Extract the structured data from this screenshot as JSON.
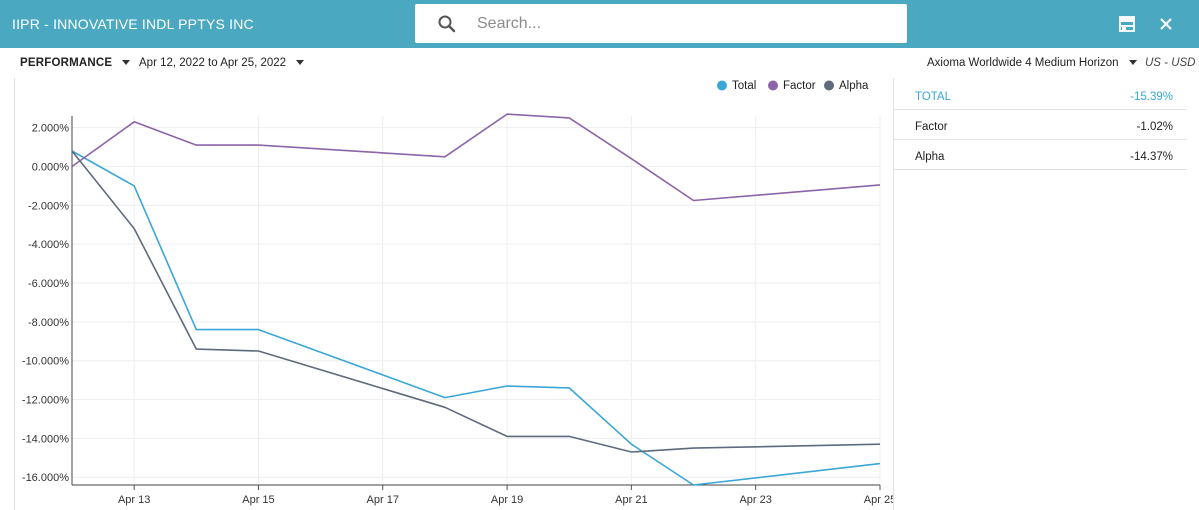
{
  "header": {
    "title": "IIPR - INNOVATIVE INDL PPTYS INC",
    "search_placeholder": "Search...",
    "icons": [
      "search-icon",
      "layout-icon",
      "close-icon"
    ]
  },
  "toolbar": {
    "view_label": "PERFORMANCE",
    "date_range": "Apr 12, 2022 to Apr 25, 2022",
    "risk_model": "Axioma Worldwide 4 Medium Horizon",
    "currency": "US - USD"
  },
  "summary": {
    "rows": [
      {
        "name": "TOTAL",
        "value": "-15.39%"
      },
      {
        "name": "Factor",
        "value": "-1.02%"
      },
      {
        "name": "Alpha",
        "value": "-14.37%"
      }
    ]
  },
  "colors": {
    "header_bg": "#4aa8c0",
    "total": "#3ba6d8",
    "factor": "#8c64a8",
    "alpha": "#5e6b7c"
  },
  "chart_data": {
    "type": "line",
    "x": [
      "Apr 12",
      "Apr 13",
      "Apr 14",
      "Apr 15",
      "Apr 18",
      "Apr 19",
      "Apr 20",
      "Apr 21",
      "Apr 22",
      "Apr 25"
    ],
    "xticks": [
      "Apr 13",
      "Apr 15",
      "Apr 17",
      "Apr 19",
      "Apr 21",
      "Apr 23",
      "Apr 25"
    ],
    "yticks": [
      "2.000%",
      "0.000%",
      "-2.000%",
      "-4.000%",
      "-6.000%",
      "-8.000%",
      "-10.000%",
      "-12.000%",
      "-14.000%",
      "-16.000%"
    ],
    "ylim": [
      -16.4,
      2.6
    ],
    "grid": true,
    "legend_position": "top-right",
    "series": [
      {
        "name": "Total",
        "values": [
          0.8,
          -1.0,
          -8.4,
          -8.4,
          -11.9,
          -11.3,
          -11.4,
          -14.3,
          -16.4,
          -15.3
        ]
      },
      {
        "name": "Factor",
        "values": [
          0.0,
          2.3,
          1.1,
          1.1,
          0.5,
          2.7,
          2.5,
          0.4,
          -1.75,
          -0.95
        ]
      },
      {
        "name": "Alpha",
        "values": [
          0.8,
          -3.2,
          -9.4,
          -9.5,
          -12.4,
          -13.9,
          -13.9,
          -14.7,
          -14.5,
          -14.3
        ]
      }
    ]
  }
}
